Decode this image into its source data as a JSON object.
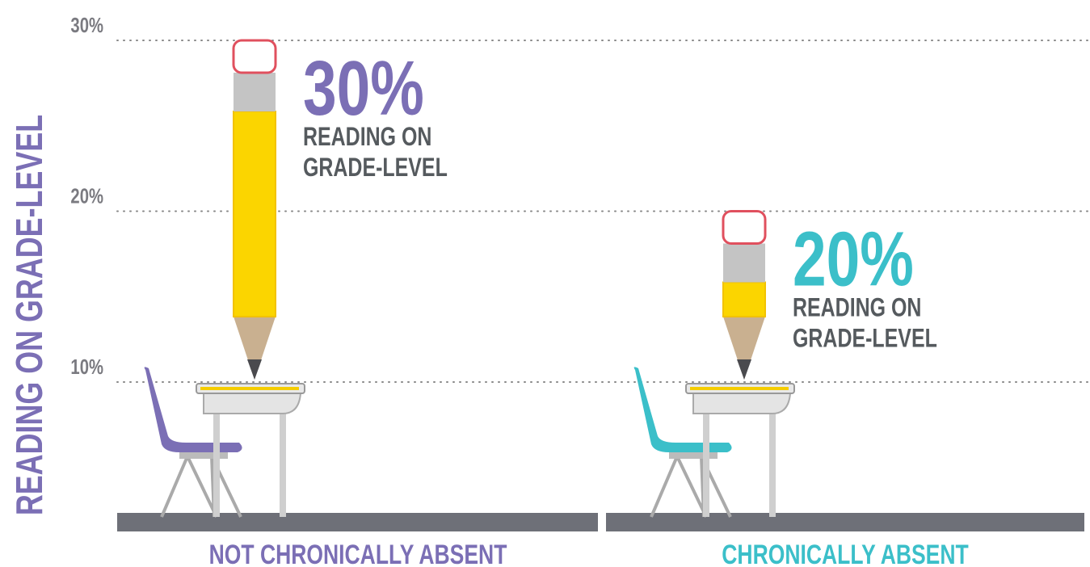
{
  "chart_data": {
    "type": "pencil",
    "y_axis_label": "READING ON GRADE-LEVEL",
    "categories": [
      "NOT CHRONICALLY ABSENT",
      "CHRONICALLY ABSENT"
    ],
    "values": [
      30,
      20
    ],
    "value_labels": [
      "30%",
      "20%"
    ],
    "colors": [
      "#7b6fb5",
      "#3bbfc9"
    ],
    "annotation": [
      "READING ON",
      "GRADE-LEVEL"
    ],
    "ylim": [
      0,
      30
    ],
    "yticks": [
      {
        "value": 10,
        "label": "10%"
      },
      {
        "value": 20,
        "label": "20%"
      },
      {
        "value": 30,
        "label": "30%"
      }
    ],
    "grid": true
  }
}
